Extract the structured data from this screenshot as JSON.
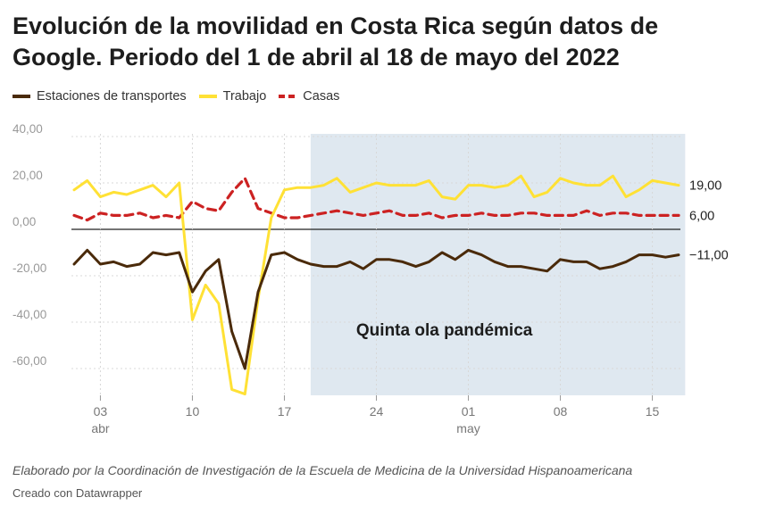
{
  "title": "Evolución de la movilidad en Costa Rica según datos de Google. Periodo del 1 de abril al 18 de mayo del 2022",
  "footer": {
    "note": "Elaborado por la Coordinación de Investigación de la Escuela de Medicina de la Universidad Hispanoamericana",
    "credit": "Creado con Datawrapper"
  },
  "chart_data": {
    "type": "line",
    "x_start": "2022-04-01",
    "x_end": "2022-05-18",
    "ylim": [
      -70,
      40
    ],
    "yticks": [
      "40,00",
      "20,00",
      "0,00",
      "-20,00",
      "-40,00",
      "-60,00"
    ],
    "ytick_values": [
      40,
      20,
      0,
      -20,
      -40,
      -60
    ],
    "xticks": [
      {
        "label": "03",
        "sublabel": "abr",
        "day": 3
      },
      {
        "label": "10",
        "sublabel": "",
        "day": 10
      },
      {
        "label": "17",
        "sublabel": "",
        "day": 17
      },
      {
        "label": "24",
        "sublabel": "",
        "day": 24
      },
      {
        "label": "01",
        "sublabel": "may",
        "day": 31
      },
      {
        "label": "08",
        "sublabel": "",
        "day": 38
      },
      {
        "label": "15",
        "sublabel": "",
        "day": 45
      }
    ],
    "grid": true,
    "legend_position": "top-left",
    "highlight_region": {
      "start_day": 19,
      "end_day": 47.5,
      "label": "Quinta ola pandémica",
      "color": "#dfe8f0"
    },
    "series": [
      {
        "name": "Estaciones de transportes",
        "color": "#4a2a0a",
        "style": "solid",
        "end_label": "−11,00",
        "values": [
          -15,
          -9,
          -15,
          -14,
          -16,
          -15,
          -10,
          -11,
          -10,
          -27,
          -18,
          -13,
          -44,
          -60,
          -27,
          -11,
          -10,
          -13,
          -15,
          -16,
          -16,
          -14,
          -17,
          -13,
          -13,
          -14,
          -16,
          -14,
          -10,
          -13,
          -9,
          -11,
          -14,
          -16,
          -16,
          -17,
          -18,
          -13,
          -14,
          -14,
          -17,
          -16,
          -14,
          -11,
          -11,
          -12,
          -11
        ]
      },
      {
        "name": "Trabajo",
        "color": "#ffe135",
        "style": "solid",
        "end_label": "19,00",
        "values": [
          17,
          21,
          14,
          16,
          15,
          17,
          19,
          14,
          20,
          -39,
          -24,
          -32,
          -69,
          -71,
          -30,
          5,
          17,
          18,
          18,
          19,
          22,
          16,
          18,
          20,
          19,
          19,
          19,
          21,
          14,
          13,
          19,
          19,
          18,
          19,
          23,
          14,
          16,
          22,
          20,
          19,
          19,
          23,
          14,
          17,
          21,
          20,
          19
        ]
      },
      {
        "name": "Casas",
        "color": "#cc2222",
        "style": "dashed",
        "end_label": "6,00",
        "values": [
          6,
          4,
          7,
          6,
          6,
          7,
          5,
          6,
          5,
          12,
          9,
          8,
          16,
          22,
          9,
          7,
          5,
          5,
          6,
          7,
          8,
          7,
          6,
          7,
          8,
          6,
          6,
          7,
          5,
          6,
          6,
          7,
          6,
          6,
          7,
          7,
          6,
          6,
          6,
          8,
          6,
          7,
          7,
          6,
          6,
          6,
          6
        ]
      }
    ]
  }
}
